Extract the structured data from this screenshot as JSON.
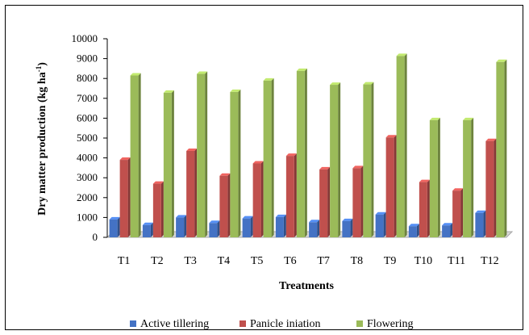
{
  "chart_data": {
    "type": "bar",
    "categories": [
      "T1",
      "T2",
      "T3",
      "T4",
      "T5",
      "T6",
      "T7",
      "T8",
      "T9",
      "T10",
      "T11",
      "T12"
    ],
    "series": [
      {
        "name": "Active tillering",
        "color": "#4472c4",
        "values": [
          900,
          620,
          1000,
          720,
          950,
          1020,
          760,
          820,
          1150,
          560,
          600,
          1230
        ]
      },
      {
        "name": "Panicle iniation",
        "color": "#c0504d",
        "values": [
          3900,
          2700,
          4350,
          3100,
          3720,
          4100,
          3420,
          3480,
          5030,
          2780,
          2350,
          4850
        ]
      },
      {
        "name": "Flowering",
        "color": "#9bbb59",
        "values": [
          8150,
          7280,
          8230,
          7320,
          7890,
          8380,
          7680,
          7700,
          9130,
          5900,
          5900,
          8830
        ]
      }
    ],
    "ylim": [
      0,
      10000
    ],
    "yticks": [
      "0",
      "1000",
      "2000",
      "3000",
      "4000",
      "5000",
      "6000",
      "7000",
      "8000",
      "9000",
      "10000"
    ],
    "ylabel": "Dry matter production (kg ha",
    "ylabel_sup": "-1",
    "ylabel_end": ")",
    "xlabel": "Treatments",
    "grid": false,
    "legend_position": "bottom"
  }
}
